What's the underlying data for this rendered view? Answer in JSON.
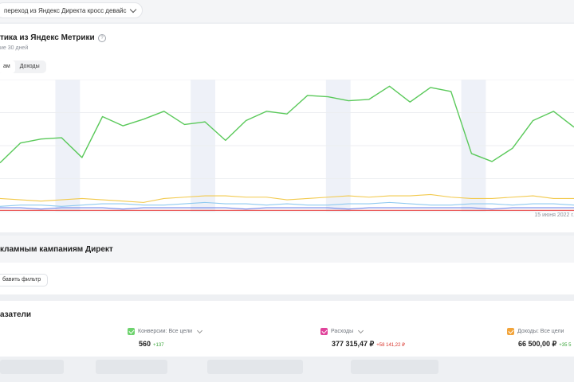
{
  "selector": {
    "label": "переход из Яндекс Директа кросс девайс"
  },
  "metrika": {
    "title": "тика из Яндекс Метрики",
    "subtitle": "ие 30 дней",
    "help_icon": "question-circle-icon",
    "tabs": [
      {
        "label": "ам"
      },
      {
        "label": "Доходы"
      }
    ],
    "date_label": "15 июня 2022 г."
  },
  "chart_data": {
    "type": "line",
    "x": [
      1,
      2,
      3,
      4,
      5,
      6,
      7,
      8,
      9,
      10,
      11,
      12,
      13,
      14,
      15,
      16,
      17,
      18,
      19,
      20,
      21,
      22,
      23,
      24,
      25,
      26,
      27,
      28,
      29
    ],
    "ylim": [
      0,
      100
    ],
    "series": [
      {
        "color": "#5ac95a",
        "values": [
          37,
          52,
          55,
          56,
          41,
          72,
          65,
          70,
          76,
          66,
          68,
          54,
          69,
          76,
          74,
          88,
          87,
          84,
          85,
          95,
          83,
          94,
          91,
          44,
          38,
          48,
          69,
          76,
          64
        ]
      },
      {
        "color": "#f2c94c",
        "values": [
          10,
          9,
          8,
          9,
          10,
          9,
          8,
          7,
          10,
          11,
          12,
          12,
          11,
          11,
          9,
          10,
          11,
          12,
          11,
          12,
          12,
          13,
          11,
          10,
          10,
          11,
          12,
          10,
          10
        ]
      },
      {
        "color": "#8ec9f0",
        "values": [
          4,
          5,
          5,
          4,
          5,
          6,
          6,
          5,
          5,
          6,
          7,
          6,
          6,
          5,
          6,
          5,
          5,
          6,
          6,
          7,
          6,
          5,
          5,
          6,
          6,
          5,
          6,
          6,
          5
        ]
      },
      {
        "color": "#6f86e8",
        "values": [
          3,
          3,
          2,
          3,
          3,
          3,
          2,
          3,
          3,
          3,
          3,
          3,
          2,
          3,
          3,
          3,
          3,
          2,
          3,
          3,
          3,
          3,
          3,
          3,
          2,
          3,
          3,
          3,
          3
        ]
      },
      {
        "color": "#e84a4a",
        "values": [
          1,
          1,
          1,
          1,
          1,
          1,
          1,
          1,
          1,
          1,
          1,
          1,
          1,
          1,
          1,
          1,
          1,
          1,
          1,
          1,
          1,
          1,
          1,
          1,
          1,
          1,
          1,
          1,
          1
        ]
      }
    ],
    "weekend_bands": [
      [
        3.7,
        4.9
      ],
      [
        10.3,
        11.5
      ],
      [
        16.9,
        18.1
      ],
      [
        23.5,
        24.7
      ]
    ]
  },
  "campaigns": {
    "title": "кламным кампаниям Директ"
  },
  "filters": {
    "add_label": "бавить фильтр"
  },
  "kpis": {
    "title": "азатели",
    "items": [
      {
        "label": "Конверсии: Все цели",
        "value": "560",
        "delta": "+137",
        "color": "#6ed36e",
        "delta_color": "#3aa53a"
      },
      {
        "label": "Расходы",
        "value": "377 315,47 ₽",
        "delta": "+58 141,22 ₽",
        "color": "#e0439b",
        "delta_color": "#d9342b"
      },
      {
        "label": "Доходы: Все цели",
        "value": "66 500,00 ₽",
        "delta": "+35 5",
        "color": "#f2a43a",
        "delta_color": "#3aa53a"
      }
    ]
  }
}
